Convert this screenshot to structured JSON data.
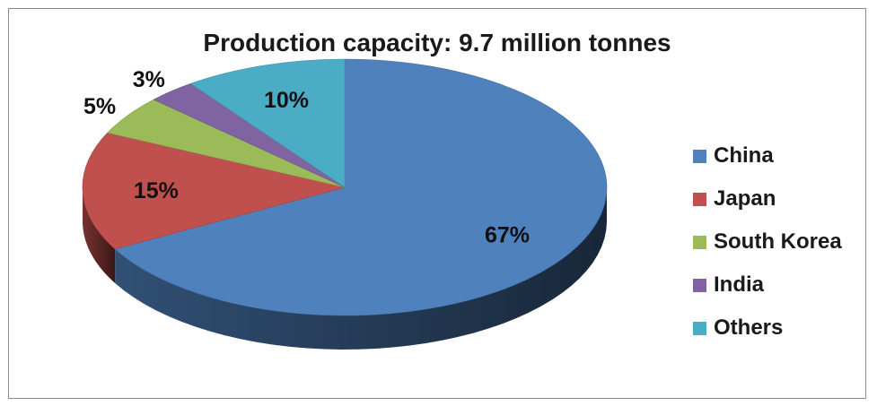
{
  "chart_data": {
    "type": "pie",
    "title": "Production capacity: 9.7 million tonnes",
    "slices": [
      {
        "label": "China",
        "value": 67,
        "value_label": "67%",
        "color": "#4F81BD"
      },
      {
        "label": "Japan",
        "value": 15,
        "value_label": "15%",
        "color": "#C0504D"
      },
      {
        "label": "South Korea",
        "value": 5,
        "value_label": "5%",
        "color": "#9BBB59"
      },
      {
        "label": "India",
        "value": 3,
        "value_label": "3%",
        "color": "#8064A2"
      },
      {
        "label": "Others",
        "value": 10,
        "value_label": "10%",
        "color": "#4BACC6"
      }
    ],
    "legend_position": "right",
    "style": "3d"
  }
}
